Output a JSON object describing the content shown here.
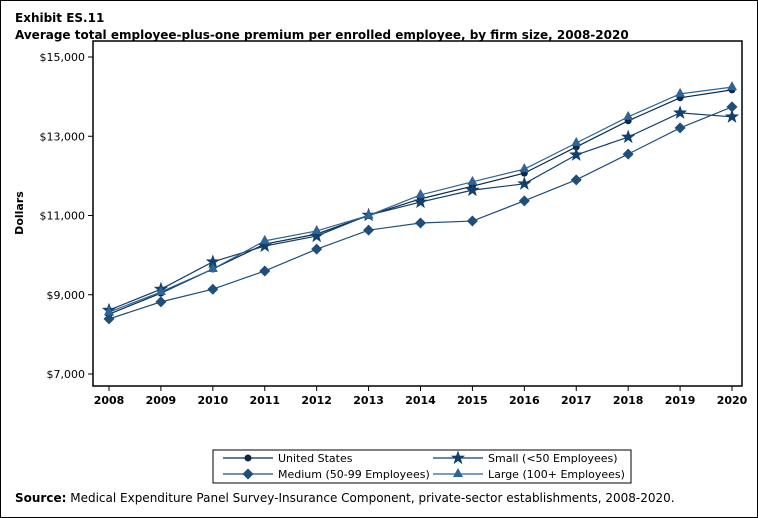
{
  "header": {
    "exhibit": "Exhibit ES.11",
    "title": "Average total employee-plus-one premium per enrolled employee, by firm size, 2008-2020"
  },
  "footer": {
    "source_label": "Source:",
    "source_text": " Medical Expenditure Panel Survey-Insurance Component, private-sector establishments, 2008-2020."
  },
  "chart_data": {
    "type": "line",
    "title": "Average total employee-plus-one premium per enrolled employee, by firm size, 2008-2020",
    "xlabel": "",
    "ylabel": "Dollars",
    "x": [
      2008,
      2009,
      2010,
      2011,
      2012,
      2013,
      2014,
      2015,
      2016,
      2017,
      2018,
      2019,
      2020
    ],
    "ylim": [
      7000,
      15000
    ],
    "yticks": [
      7000,
      9000,
      11000,
      13000,
      15000
    ],
    "ytick_labels": [
      "$7,000",
      "$9,000",
      "$11,000",
      "$13,000",
      "$15,000"
    ],
    "grid": false,
    "legend_position": "bottom",
    "series": [
      {
        "name": "United States",
        "marker": "circle",
        "color": "#0b2a4a",
        "values": [
          8510,
          9040,
          9650,
          10280,
          10530,
          11000,
          11420,
          11740,
          12070,
          12730,
          13390,
          13970,
          14170
        ]
      },
      {
        "name": "Small (<50 Employees)",
        "marker": "star",
        "color": "#123f6b",
        "values": [
          8610,
          9140,
          9830,
          10230,
          10480,
          11010,
          11340,
          11640,
          11800,
          12530,
          12980,
          13590,
          13490
        ]
      },
      {
        "name": "Medium (50-99 Employees)",
        "marker": "diamond",
        "color": "#1f4e79",
        "values": [
          8390,
          8820,
          9140,
          9600,
          10150,
          10630,
          10810,
          10860,
          11370,
          11900,
          12550,
          13210,
          13740
        ]
      },
      {
        "name": "Large (100+ Employees)",
        "marker": "triangle",
        "color": "#2e6496",
        "values": [
          8560,
          9070,
          9650,
          10360,
          10610,
          11000,
          11520,
          11850,
          12170,
          12830,
          13490,
          14070,
          14240
        ]
      }
    ]
  }
}
